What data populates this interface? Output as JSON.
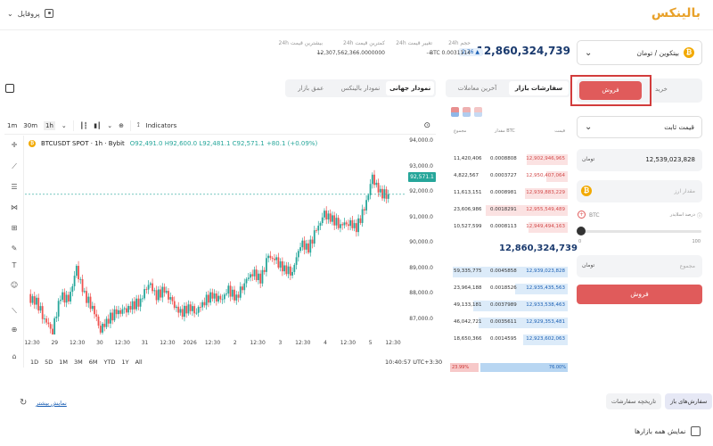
{
  "header": {
    "logo": "بالینکس",
    "profile_label": "پروفایل"
  },
  "market": {
    "pair_label": "بیتکوین / تومان",
    "coin_icon": "bitcoin-icon",
    "last_price": "12,860,324,739",
    "change_badge": "2.76 ▲",
    "stats": {
      "volume_label": "حجم 24h",
      "volume_value": "BTC 0.0031114",
      "change_label": "تغییر قیمت 24h",
      "change_value": "---",
      "low_label": "کمترین قیمت 24h",
      "low_value": "12,307,562,366.0000000",
      "high_label": "بیشترین قیمت 24h",
      "high_value": "---"
    }
  },
  "chart_panel": {
    "tabs": [
      "نمودار جهانی",
      "نمودار بالینکس",
      "عمق بازار"
    ],
    "active_tab": 0,
    "toolbar": {
      "intervals": [
        "1m",
        "30m",
        "1h"
      ],
      "indicators_label": "Indicators"
    },
    "title": "BTCUSDT SPOT · 1h · Bybit",
    "ohlc": "O92,491.0 H92,600.0 L92,481.1 C92,571.1 +80.1 (+0.09%)",
    "price_tag": "92,571.1",
    "price_axis": [
      "94,000.0",
      "93,000.0",
      "92,000.0",
      "91,000.0",
      "90,000.0",
      "89,000.0",
      "88,000.0",
      "87,000.0"
    ],
    "time_axis": [
      "12:30",
      "29",
      "12:30",
      "30",
      "12:30",
      "31",
      "12:30",
      "2026",
      "12:30",
      "2",
      "12:30",
      "3",
      "12:30",
      "4",
      "12:30",
      "5",
      "12:30"
    ],
    "ranges": [
      "1D",
      "5D",
      "1M",
      "3M",
      "6M",
      "YTD",
      "1Y",
      "All"
    ],
    "clock": "10:40:57 UTC+3:30",
    "colors": {
      "up": "#26a69a",
      "down": "#ef5350"
    }
  },
  "chart_data": {
    "type": "candlestick",
    "title": "BTCUSDT SPOT · 1h · Bybit",
    "ylim": [
      87000,
      94000
    ],
    "x_range": [
      "28 12:30",
      "5 12:30"
    ],
    "close_approx": [
      88600,
      88450,
      87800,
      87350,
      88700,
      88500,
      89700,
      88700,
      88250,
      87400,
      87800,
      88050,
      88100,
      88300,
      88500,
      89200,
      88700,
      88900,
      88400,
      88000,
      88250,
      88100,
      88500,
      88700,
      88500,
      88900,
      88600,
      89200,
      89600,
      89300,
      90200,
      90000,
      89700,
      89600,
      90700,
      90500,
      91200,
      91800,
      91600,
      91400,
      91500,
      91300,
      92000,
      93200,
      92600,
      92571
    ],
    "last": 92571.1
  },
  "order_book": {
    "tabs": [
      "سفارشات بازار",
      "آخرین معاملات"
    ],
    "active_tab": 0,
    "headers": [
      "مجموع",
      "مقدار BTC",
      "قیمت"
    ],
    "asks": [
      {
        "total": "11,420,406",
        "amount": "0.0008808",
        "price": "12,902,946,965",
        "depth": 0.35
      },
      {
        "total": "4,822,567",
        "amount": "0.0003727",
        "price": "12,950,407,064",
        "depth": 0.18
      },
      {
        "total": "11,613,151",
        "amount": "0.0008981",
        "price": "12,939,883,229",
        "depth": 0.36
      },
      {
        "total": "23,606,986",
        "amount": "0.0018291",
        "price": "12,955,549,489",
        "depth": 0.7
      },
      {
        "total": "10,527,599",
        "amount": "0.0008113",
        "price": "12,949,494,163",
        "depth": 0.33
      }
    ],
    "mid_price": "12,860,324,739",
    "bids": [
      {
        "total": "59,335,775",
        "amount": "0.0045858",
        "price": "12,939,023,828",
        "depth": 0.98
      },
      {
        "total": "23,964,188",
        "amount": "0.0018526",
        "price": "12,935,435,563",
        "depth": 0.45
      },
      {
        "total": "49,133,181",
        "amount": "0.0037989",
        "price": "12,933,538,463",
        "depth": 0.8
      },
      {
        "total": "46,042,721",
        "amount": "0.0035611",
        "price": "12,929,353,481",
        "depth": 0.76
      },
      {
        "total": "18,650,366",
        "amount": "0.0014595",
        "price": "12,923,602,063",
        "depth": 0.38
      }
    ],
    "ratio_sell": "23.99%",
    "ratio_buy": "76.00%",
    "ratio_sell_fraction": 0.24
  },
  "trade_form": {
    "buy_label": "خرید",
    "sell_label": "فروش",
    "order_type": "قیمت ثابت",
    "price_currency": "تومان",
    "price_value": "12,539,023,828",
    "amount_placeholder": "مقدار ارز",
    "percent_label": "درصد اسلایدر",
    "slider_currency": "BTC",
    "slider_min": "0",
    "slider_max": "100",
    "slider_value": 0,
    "total_currency": "تومان",
    "total_placeholder": "مجموع",
    "submit_label": "فروش",
    "sell_color": "#e05b5b"
  },
  "bottom": {
    "tabs": [
      "سفارش‌های باز",
      "تاریخچه سفارشات"
    ],
    "active_tab": 0,
    "show_more": "نمایش بیشتر",
    "all_markets_label": "نمایش همه بازارها"
  }
}
